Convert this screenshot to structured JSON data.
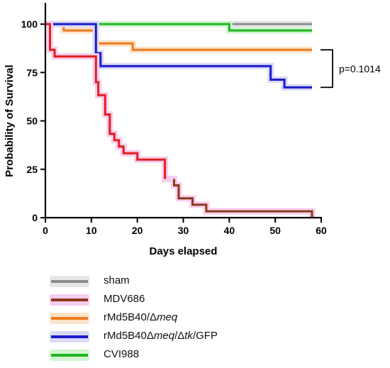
{
  "chart_data": {
    "type": "line",
    "step": true,
    "xlabel": "Days elapsed",
    "ylabel": "Probability of Survival",
    "xlim": [
      0,
      60
    ],
    "ylim": [
      0,
      100
    ],
    "xticks": [
      "0",
      "10",
      "20",
      "30",
      "40",
      "50",
      "60"
    ],
    "yticks": [
      "0",
      "25",
      "50",
      "75",
      "100"
    ],
    "grid": false,
    "annotation": {
      "text": "p=0.1014",
      "bracket_from": 86.7,
      "bracket_to": 67.3
    },
    "legend_position": "bottom",
    "series": [
      {
        "name": "sham",
        "label_parts": [
          {
            "t": "sham",
            "i": false
          }
        ],
        "color": "#8c8c8c",
        "glow": "#e6e6e6",
        "points": [
          [
            0,
            100
          ],
          [
            58,
            100
          ]
        ]
      },
      {
        "name": "CVI988",
        "label_parts": [
          {
            "t": "CVI988",
            "i": false
          }
        ],
        "color": "#1fb51f",
        "glow": "#d2f5d2",
        "points": [
          [
            0,
            100
          ],
          [
            40,
            100
          ],
          [
            40,
            96.7
          ],
          [
            58,
            96.7
          ]
        ]
      },
      {
        "name": "rMd5B40/Δmeq",
        "label_parts": [
          {
            "t": "rMd5B40/Δ",
            "i": false
          },
          {
            "t": "meq",
            "i": true
          }
        ],
        "color": "#ee7b1f",
        "glow": "#fde3c9",
        "points": [
          [
            0,
            100
          ],
          [
            4,
            100
          ],
          [
            4,
            96.7
          ],
          [
            11,
            96.7
          ],
          [
            11,
            90
          ],
          [
            19,
            90
          ],
          [
            19,
            86.7
          ],
          [
            58,
            86.7
          ]
        ]
      },
      {
        "name": "rMd5B40Δmeq/Δtk/GFP",
        "label_parts": [
          {
            "t": "rMd5B40Δ",
            "i": false
          },
          {
            "t": "meq",
            "i": true
          },
          {
            "t": "/Δ",
            "i": false
          },
          {
            "t": "tk",
            "i": true
          },
          {
            "t": "/GFP",
            "i": false
          }
        ],
        "color": "#1a1acc",
        "glow": "#dadaf7",
        "points": [
          [
            0,
            100
          ],
          [
            11,
            100
          ],
          [
            11,
            85
          ],
          [
            12,
            85
          ],
          [
            12,
            78.3
          ],
          [
            49,
            78.3
          ],
          [
            49,
            71.3
          ],
          [
            52,
            71.3
          ],
          [
            52,
            67.3
          ],
          [
            58,
            67.3
          ]
        ]
      },
      {
        "name": "MDV686",
        "label_parts": [
          {
            "t": "MDV686",
            "i": false
          }
        ],
        "color": "#e51e1e",
        "glow": "#f7cdef",
        "color_tail": "#8b3a1a",
        "tail_from_x": 27,
        "points": [
          [
            0,
            100
          ],
          [
            1,
            100
          ],
          [
            1,
            86.7
          ],
          [
            2,
            86.7
          ],
          [
            2,
            83.3
          ],
          [
            11,
            83.3
          ],
          [
            11,
            70
          ],
          [
            11.5,
            70
          ],
          [
            11.5,
            63.3
          ],
          [
            13,
            63.3
          ],
          [
            13,
            53.3
          ],
          [
            14,
            53.3
          ],
          [
            14,
            43.3
          ],
          [
            15,
            43.3
          ],
          [
            15,
            40
          ],
          [
            16,
            40
          ],
          [
            16,
            36.7
          ],
          [
            17,
            36.7
          ],
          [
            17,
            33.3
          ],
          [
            20,
            33.3
          ],
          [
            20,
            30
          ],
          [
            26,
            30
          ],
          [
            26,
            20
          ],
          [
            28,
            20
          ],
          [
            28,
            16.7
          ],
          [
            29,
            16.7
          ],
          [
            29,
            10
          ],
          [
            32,
            10
          ],
          [
            32,
            6.7
          ],
          [
            35,
            6.7
          ],
          [
            35,
            3.3
          ],
          [
            58,
            3.3
          ],
          [
            58,
            0
          ]
        ]
      }
    ],
    "legend_order": [
      "sham",
      "MDV686",
      "rMd5B40/Δmeq",
      "rMd5B40Δmeq/Δtk/GFP",
      "CVI988"
    ]
  }
}
